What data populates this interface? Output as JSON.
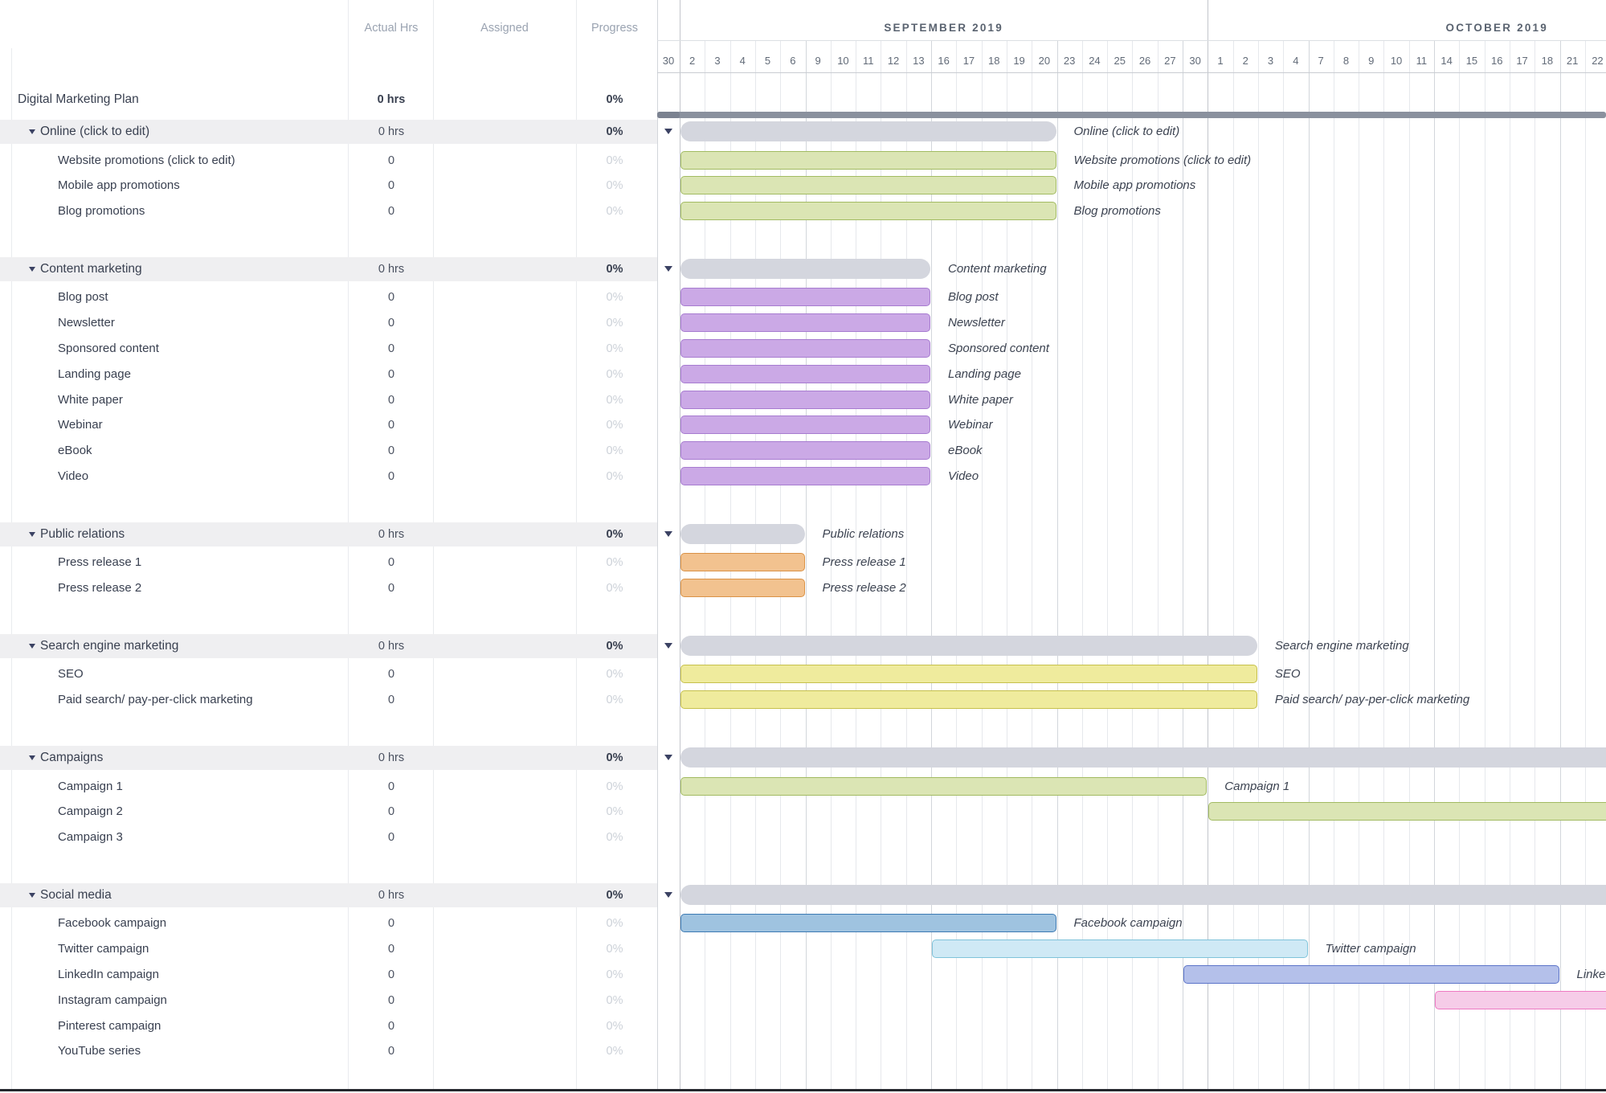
{
  "header": {
    "columns": {
      "actual": "Actual Hrs",
      "assigned": "Assigned",
      "progress": "Progress"
    }
  },
  "project": {
    "name": "Digital Marketing Plan",
    "actual": "0 hrs",
    "progress": "0%"
  },
  "timeline": {
    "months": [
      {
        "label": "SEPTEMBER 2019",
        "days": [
          30,
          2,
          3,
          4,
          5,
          6,
          9,
          10,
          11,
          12,
          13,
          16,
          17,
          18,
          19,
          20,
          23,
          24,
          25,
          26,
          27,
          30
        ]
      },
      {
        "label": "OCTOBER 2019",
        "days": [
          1,
          2,
          3,
          4,
          7,
          8,
          9,
          10,
          11,
          14,
          15,
          16,
          17,
          18,
          21,
          22
        ]
      }
    ]
  },
  "palette": {
    "green": {
      "fill": "#dbe5b4",
      "stroke": "#a2bb62"
    },
    "purple": {
      "fill": "#cba9e6",
      "stroke": "#a77cd0"
    },
    "orange": {
      "fill": "#f2c28f",
      "stroke": "#da9246"
    },
    "yellow": {
      "fill": "#efeb9d",
      "stroke": "#c6c04c"
    },
    "blue": {
      "fill": "#9fc3e0",
      "stroke": "#3d7ab3"
    },
    "cyan": {
      "fill": "#cfe9f5",
      "stroke": "#7fc3da"
    },
    "periwinkle": {
      "fill": "#b4c0ea",
      "stroke": "#5c74c8"
    },
    "pink": {
      "fill": "#f6cce8",
      "stroke": "#ee79c3"
    },
    "group_bar": "#d4d6de",
    "project_bar": "#8a919e",
    "project_bar_cap": "#7b8290",
    "collapse_arrow": "#3b4263"
  },
  "sections": [
    {
      "name": "Online (click to edit)",
      "actual": "0 hrs",
      "progress": "0%",
      "bar": {
        "start": [
          9,
          2
        ],
        "end": [
          9,
          20
        ]
      },
      "tasks": [
        {
          "name": "Website promotions (click to edit)",
          "actual": "0",
          "progress": "0%",
          "color": "green",
          "bar": {
            "start": [
              9,
              2
            ],
            "end": [
              9,
              20
            ]
          }
        },
        {
          "name": "Mobile app promotions",
          "actual": "0",
          "progress": "0%",
          "color": "green",
          "bar": {
            "start": [
              9,
              2
            ],
            "end": [
              9,
              20
            ]
          }
        },
        {
          "name": "Blog promotions",
          "actual": "0",
          "progress": "0%",
          "color": "green",
          "bar": {
            "start": [
              9,
              2
            ],
            "end": [
              9,
              20
            ]
          }
        }
      ]
    },
    {
      "name": "Content marketing",
      "actual": "0 hrs",
      "progress": "0%",
      "bar": {
        "start": [
          9,
          2
        ],
        "end": [
          9,
          13
        ]
      },
      "tasks": [
        {
          "name": "Blog post",
          "actual": "0",
          "progress": "0%",
          "color": "purple",
          "bar": {
            "start": [
              9,
              2
            ],
            "end": [
              9,
              13
            ]
          }
        },
        {
          "name": "Newsletter",
          "actual": "0",
          "progress": "0%",
          "color": "purple",
          "bar": {
            "start": [
              9,
              2
            ],
            "end": [
              9,
              13
            ]
          }
        },
        {
          "name": "Sponsored content",
          "actual": "0",
          "progress": "0%",
          "color": "purple",
          "bar": {
            "start": [
              9,
              2
            ],
            "end": [
              9,
              13
            ]
          }
        },
        {
          "name": "Landing page",
          "actual": "0",
          "progress": "0%",
          "color": "purple",
          "bar": {
            "start": [
              9,
              2
            ],
            "end": [
              9,
              13
            ]
          }
        },
        {
          "name": "White paper",
          "actual": "0",
          "progress": "0%",
          "color": "purple",
          "bar": {
            "start": [
              9,
              2
            ],
            "end": [
              9,
              13
            ]
          }
        },
        {
          "name": "Webinar",
          "actual": "0",
          "progress": "0%",
          "color": "purple",
          "bar": {
            "start": [
              9,
              2
            ],
            "end": [
              9,
              13
            ]
          }
        },
        {
          "name": "eBook",
          "actual": "0",
          "progress": "0%",
          "color": "purple",
          "bar": {
            "start": [
              9,
              2
            ],
            "end": [
              9,
              13
            ]
          }
        },
        {
          "name": "Video",
          "actual": "0",
          "progress": "0%",
          "color": "purple",
          "bar": {
            "start": [
              9,
              2
            ],
            "end": [
              9,
              13
            ]
          }
        }
      ]
    },
    {
      "name": "Public relations",
      "actual": "0 hrs",
      "progress": "0%",
      "bar": {
        "start": [
          9,
          2
        ],
        "end": [
          9,
          6
        ]
      },
      "tasks": [
        {
          "name": "Press release 1",
          "actual": "0",
          "progress": "0%",
          "color": "orange",
          "bar": {
            "start": [
              9,
              2
            ],
            "end": [
              9,
              6
            ]
          }
        },
        {
          "name": "Press release 2",
          "actual": "0",
          "progress": "0%",
          "color": "orange",
          "bar": {
            "start": [
              9,
              2
            ],
            "end": [
              9,
              6
            ]
          }
        }
      ]
    },
    {
      "name": "Search engine marketing",
      "actual": "0 hrs",
      "progress": "0%",
      "bar": {
        "start": [
          9,
          2
        ],
        "end": [
          10,
          2
        ]
      },
      "tasks": [
        {
          "name": "SEO",
          "actual": "0",
          "progress": "0%",
          "color": "yellow",
          "bar": {
            "start": [
              9,
              2
            ],
            "end": [
              10,
              2
            ]
          }
        },
        {
          "name": "Paid search/ pay-per-click marketing",
          "actual": "0",
          "progress": "0%",
          "color": "yellow",
          "bar": {
            "start": [
              9,
              2
            ],
            "end": [
              10,
              2
            ]
          }
        }
      ]
    },
    {
      "name": "Campaigns",
      "actual": "0 hrs",
      "progress": "0%",
      "bar": {
        "start": [
          9,
          2
        ],
        "end": "clip"
      },
      "tasks": [
        {
          "name": "Campaign 1",
          "actual": "0",
          "progress": "0%",
          "color": "green",
          "bar": {
            "start": [
              9,
              2
            ],
            "end": [
              9,
              30
            ]
          }
        },
        {
          "name": "Campaign 2",
          "actual": "0",
          "progress": "0%",
          "color": "green",
          "bar": {
            "start": [
              10,
              1
            ],
            "end": "clip"
          }
        },
        {
          "name": "Campaign 3",
          "actual": "0",
          "progress": "0%",
          "color": "green",
          "bar": null
        }
      ]
    },
    {
      "name": "Social media",
      "actual": "0 hrs",
      "progress": "0%",
      "bar": {
        "start": [
          9,
          2
        ],
        "end": "clip"
      },
      "tasks": [
        {
          "name": "Facebook campaign",
          "actual": "0",
          "progress": "0%",
          "color": "blue",
          "bar": {
            "start": [
              9,
              2
            ],
            "end": [
              9,
              20
            ]
          }
        },
        {
          "name": "Twitter campaign",
          "actual": "0",
          "progress": "0%",
          "color": "cyan",
          "bar": {
            "start": [
              9,
              16
            ],
            "end": [
              10,
              4
            ]
          }
        },
        {
          "name": "LinkedIn campaign",
          "actual": "0",
          "progress": "0%",
          "color": "periwinkle",
          "bar": {
            "start": [
              9,
              30
            ],
            "end": [
              10,
              18
            ]
          }
        },
        {
          "name": "Instagram campaign",
          "actual": "0",
          "progress": "0%",
          "color": "pink",
          "bar": {
            "start": [
              10,
              14
            ],
            "end": "clip"
          }
        },
        {
          "name": "Pinterest campaign",
          "actual": "0",
          "progress": "0%",
          "color": "pink",
          "bar": null
        },
        {
          "name": "YouTube series",
          "actual": "0",
          "progress": "0%",
          "color": "pink",
          "bar": null
        }
      ]
    }
  ]
}
